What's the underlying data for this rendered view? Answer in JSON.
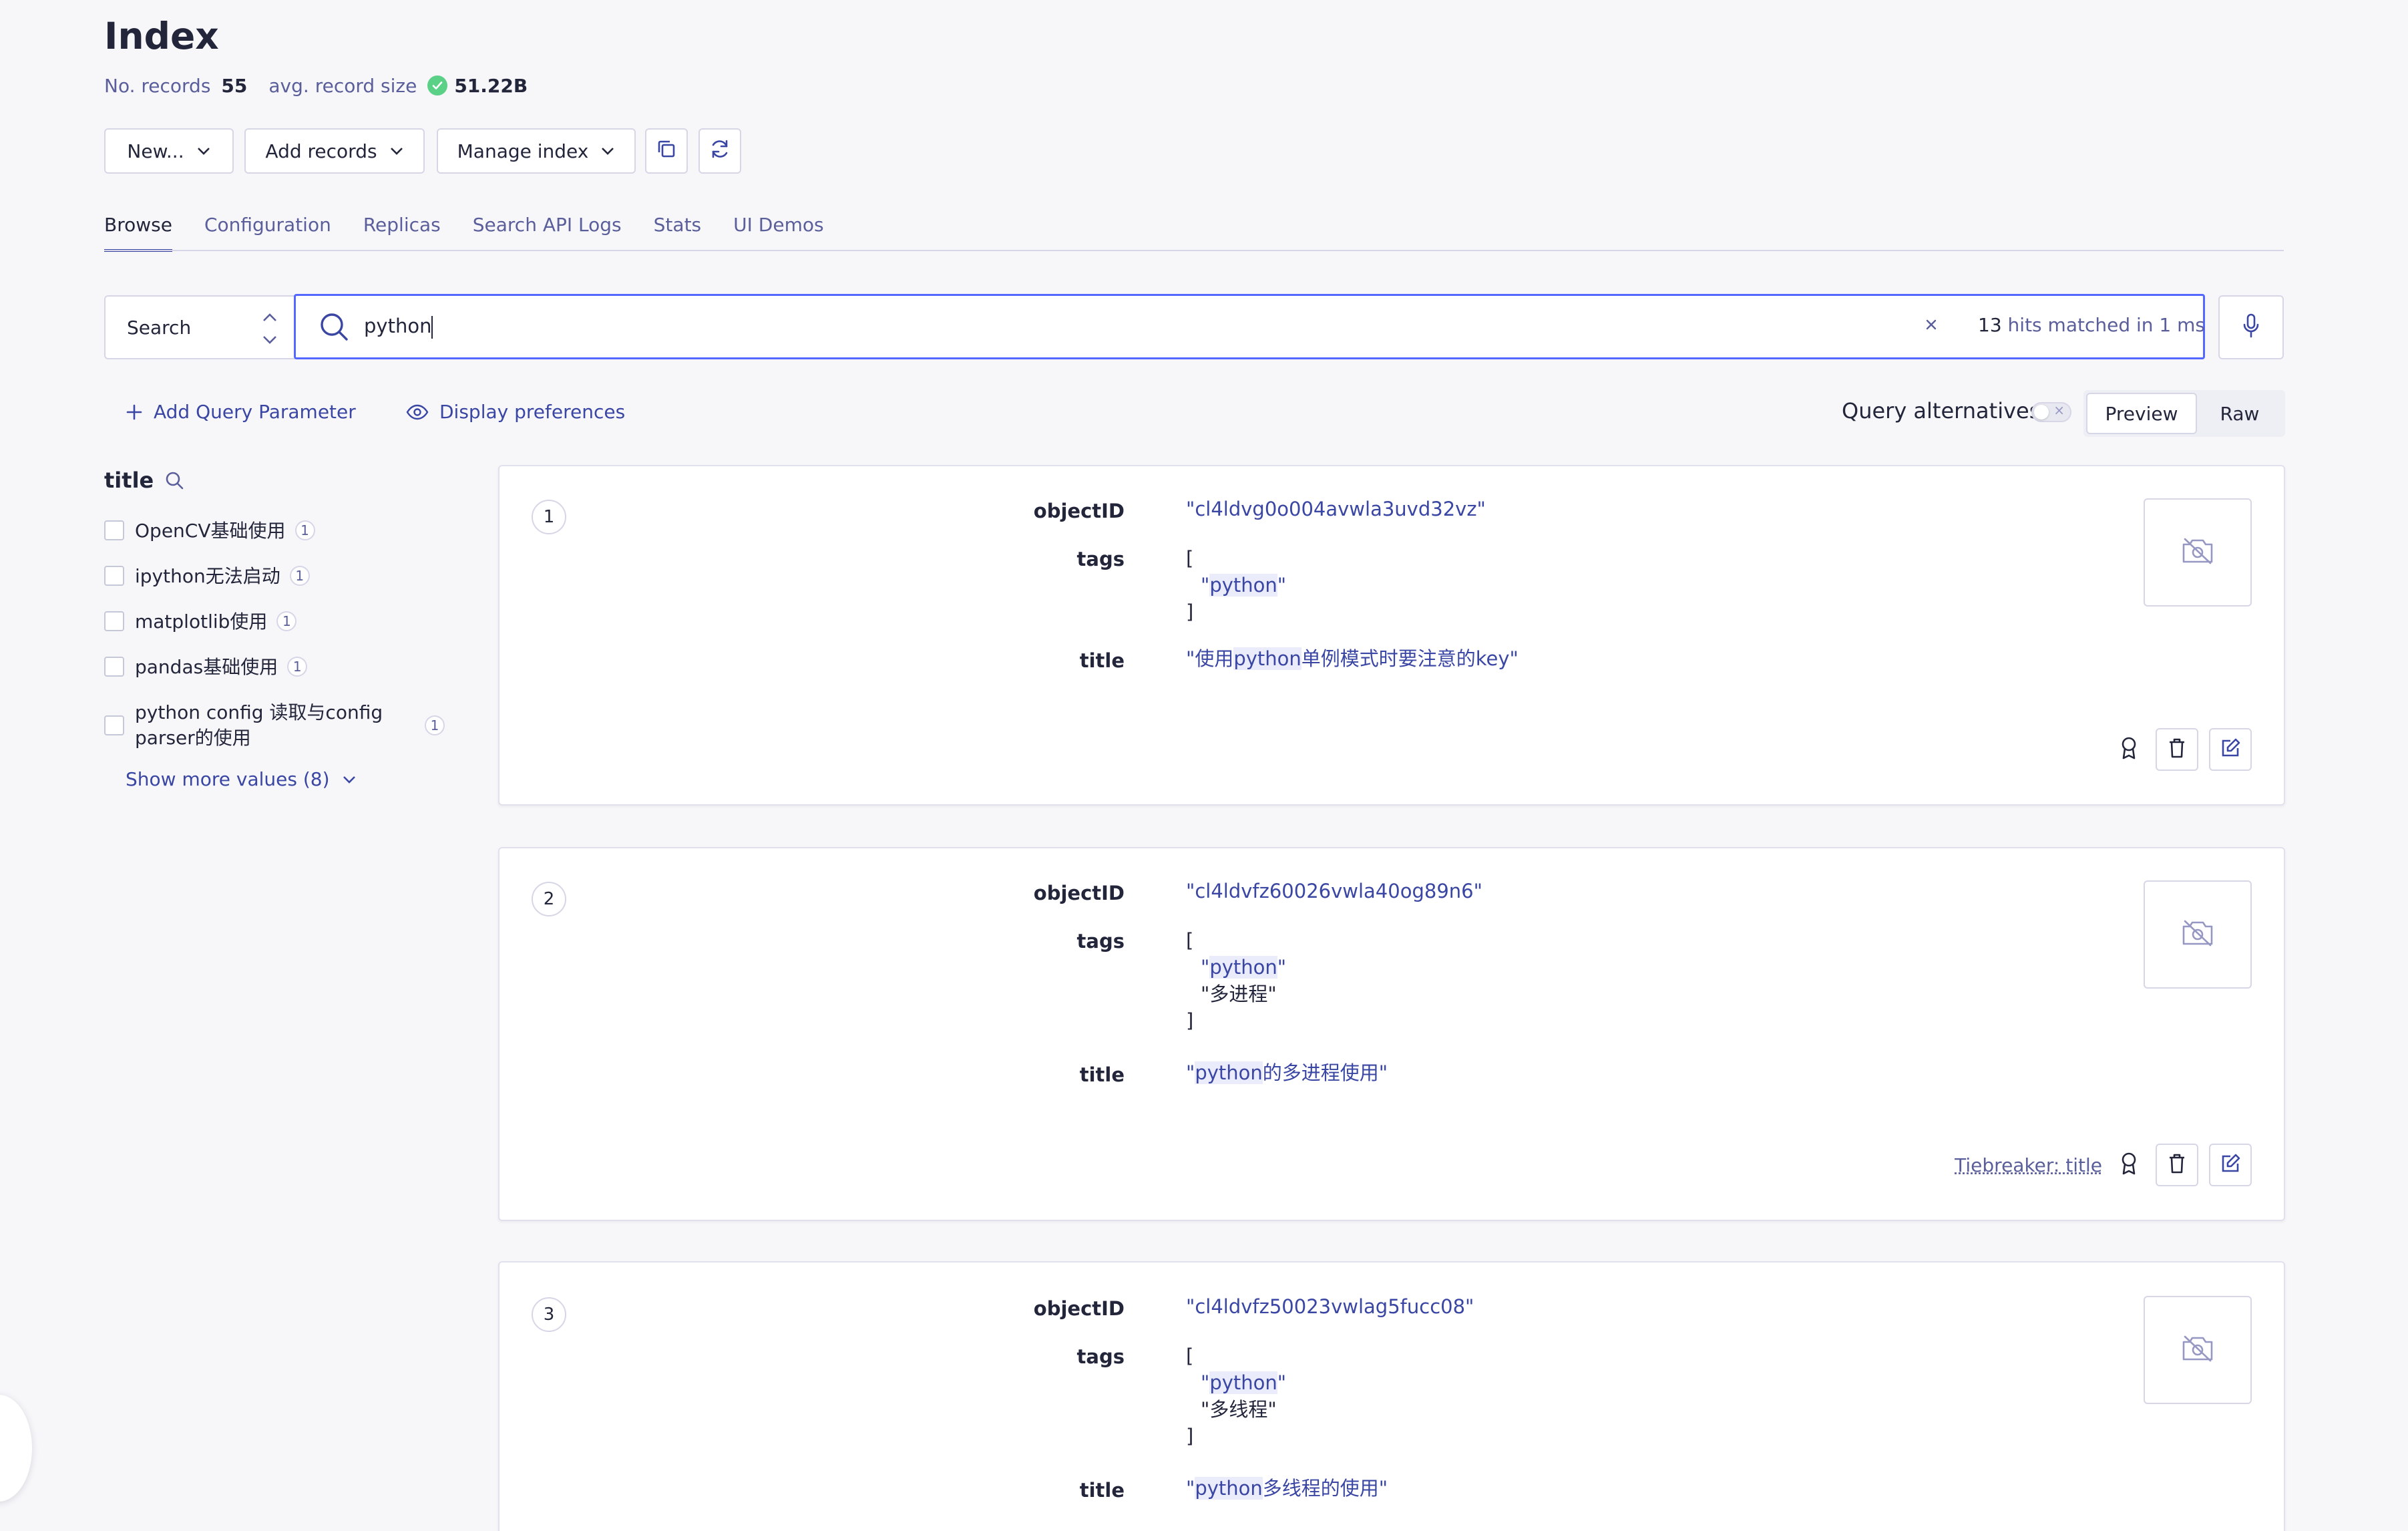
{
  "page": {
    "title": "Index",
    "stats": {
      "records_label": "No. records",
      "records_value": "55",
      "size_label": "avg. record size",
      "size_value": "51.22B"
    }
  },
  "toolbar": {
    "new_label": "New...",
    "add_records_label": "Add records",
    "manage_index_label": "Manage index",
    "copy_icon": "copy-icon",
    "refresh_icon": "refresh-icon"
  },
  "tabs": [
    {
      "label": "Browse",
      "active": true
    },
    {
      "label": "Configuration",
      "active": false
    },
    {
      "label": "Replicas",
      "active": false
    },
    {
      "label": "Search API Logs",
      "active": false
    },
    {
      "label": "Stats",
      "active": false
    },
    {
      "label": "UI Demos",
      "active": false
    }
  ],
  "search": {
    "mode_label": "Search",
    "query": "python",
    "hits_count": "13",
    "hits_suffix": "hits matched in 1 ms"
  },
  "actions": {
    "add_param_label": "Add Query Parameter",
    "display_prefs_label": "Display preferences",
    "query_alternatives_label": "Query alternatives",
    "view_preview_label": "Preview",
    "view_raw_label": "Raw"
  },
  "facets": {
    "title": "title",
    "items": [
      {
        "label": "OpenCV基础使用",
        "count": "1"
      },
      {
        "label": "ipython无法启动",
        "count": "1"
      },
      {
        "label": "matplotlib使用",
        "count": "1"
      },
      {
        "label": "pandas基础使用",
        "count": "1"
      },
      {
        "label": "python config 读取与config parser的使用",
        "count": "1"
      }
    ],
    "show_more_label": "Show more values (8)"
  },
  "hits": [
    {
      "rank": "1",
      "objectID_label": "objectID",
      "objectID": "\"cl4ldvg0o004avwla3uvd32vz\"",
      "tags_label": "tags",
      "tag1_pre": "\"",
      "tag1_hl": "python",
      "tag1_post": "\"",
      "title_label": "title",
      "title_pre": "\"使用",
      "title_hl": "python",
      "title_post": "单例模式时要注意的key\""
    },
    {
      "rank": "2",
      "objectID_label": "objectID",
      "objectID": "\"cl4ldvfz60026vwla40og89n6\"",
      "tags_label": "tags",
      "tag1_pre": "\"",
      "tag1_hl": "python",
      "tag1_post": "\"",
      "tag2": "\"多进程\"",
      "title_label": "title",
      "title_pre": "\"",
      "title_hl": "python",
      "title_post": "的多进程使用\"",
      "tiebreaker": "Tiebreaker: title"
    },
    {
      "rank": "3",
      "objectID_label": "objectID",
      "objectID": "\"cl4ldvfz50023vwlag5fucc08\"",
      "tags_label": "tags",
      "tag1_pre": "\"",
      "tag1_hl": "python",
      "tag1_post": "\"",
      "tag2": "\"多线程\"",
      "title_label": "title",
      "title_pre": "\"",
      "title_hl": "python",
      "title_post": "多线程的使用\""
    }
  ],
  "brackets": {
    "open": "[",
    "close": "]"
  },
  "colors": {
    "accent": "#5468ff",
    "link": "#3a46a3",
    "success": "#5bd087",
    "text": "#23263b",
    "muted": "#5a5e9a"
  }
}
